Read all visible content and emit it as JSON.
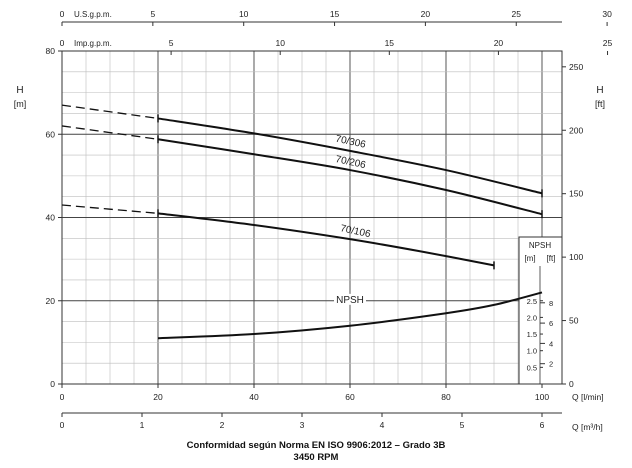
{
  "chart_data": {
    "type": "line",
    "x_axis": {
      "label": "Q [l/min]",
      "range": [
        0,
        100
      ],
      "ticks": [
        0,
        20,
        40,
        60,
        80,
        100
      ]
    },
    "x_axis_m3h": {
      "label": "Q [m³/h]",
      "ticks": [
        0,
        1,
        2,
        3,
        4,
        5,
        6
      ]
    },
    "x_axis_usgpm": {
      "label": "U.S.g.p.m.",
      "ticks": [
        0,
        5,
        10,
        15,
        20,
        25,
        30
      ]
    },
    "x_axis_impgpm": {
      "label": "Imp.g.p.m.",
      "ticks": [
        0,
        5,
        10,
        15,
        20,
        25
      ]
    },
    "y_axis_left": {
      "label": "H",
      "unit": "[m]",
      "range": [
        0,
        80
      ],
      "ticks": [
        0,
        20,
        40,
        60,
        80
      ]
    },
    "y_axis_right": {
      "label": "H",
      "unit": "[ft]",
      "ticks": [
        0,
        50,
        100,
        150,
        200,
        250
      ]
    },
    "npsh_axis": {
      "label": "NPSH",
      "unit_m": "[m]",
      "unit_ft": "[ft]",
      "ticks_m": [
        "0.5",
        "1.0",
        "1.5",
        "2.0",
        "2.5"
      ],
      "ticks_ft": [
        "2",
        "4",
        "6",
        "8"
      ]
    },
    "series": [
      {
        "name": "70/306",
        "dashed": {
          "x": [
            0,
            20
          ],
          "y": [
            67,
            63.8
          ]
        },
        "values": {
          "x": [
            20,
            40,
            60,
            80,
            100
          ],
          "y": [
            63.8,
            60.2,
            56,
            51.4,
            45.8
          ]
        }
      },
      {
        "name": "70/206",
        "dashed": {
          "x": [
            0,
            20
          ],
          "y": [
            62,
            58.8
          ]
        },
        "values": {
          "x": [
            20,
            40,
            60,
            80,
            100
          ],
          "y": [
            58.8,
            55.2,
            51.4,
            46.6,
            40.8
          ]
        }
      },
      {
        "name": "70/106",
        "dashed": {
          "x": [
            0,
            20
          ],
          "y": [
            43,
            41
          ]
        },
        "values": {
          "x": [
            20,
            40,
            60,
            75,
            90
          ],
          "y": [
            41,
            38.2,
            34.8,
            31.8,
            28.5
          ]
        }
      },
      {
        "name": "NPSH",
        "values": {
          "x": [
            20,
            40,
            60,
            80,
            90,
            100
          ],
          "y": [
            11,
            12,
            14,
            17,
            19,
            22
          ]
        }
      }
    ],
    "grid": true,
    "caption_line1": "Conformidad según Norma EN ISO 9906:2012 – Grado 3B",
    "caption_line2": "3450 RPM"
  }
}
